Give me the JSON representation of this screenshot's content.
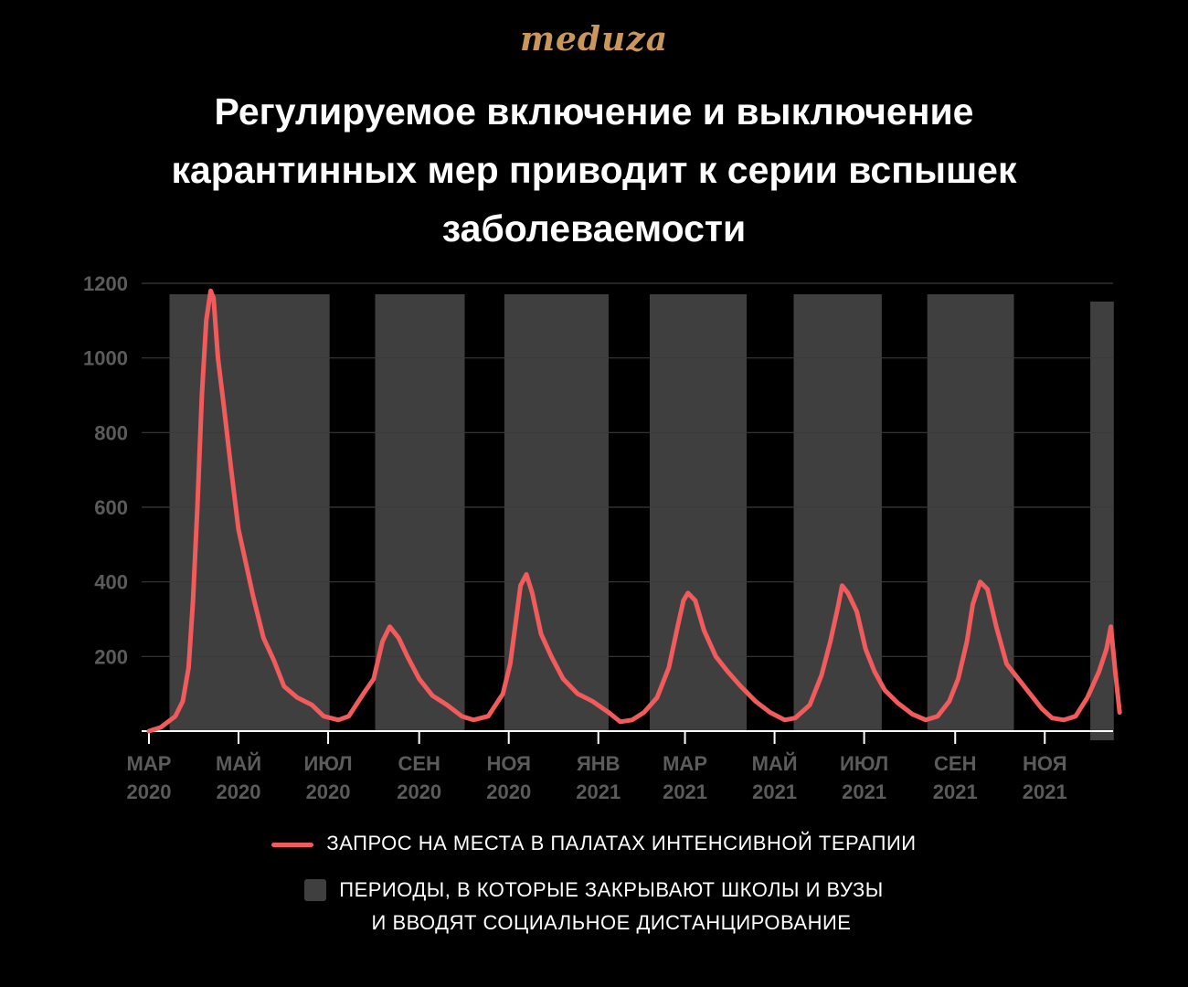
{
  "logo": "meduza",
  "colors": {
    "background": "#000000",
    "line": "#f15b5b",
    "band": "#3f3f3f",
    "logo": "#c9975c",
    "axis_text": "#5b5b5b",
    "grid": "#3a3a3a"
  },
  "chart_data": {
    "type": "line",
    "title": "Регулируемое включение и выключение карантинных мер приводит к серии вспышек заболеваемости",
    "xlabel": "",
    "ylabel": "",
    "ylim": [
      0,
      1200
    ],
    "xlim": [
      "2020-03-01",
      "2021-12-20"
    ],
    "yticks": [
      200,
      400,
      600,
      800,
      1000,
      1200
    ],
    "ytick_labels": [
      "200",
      "400",
      "600",
      "800",
      "1000",
      "1200"
    ],
    "xticks": [
      {
        "date": "2020-03-01",
        "line1": "МАР",
        "line2": "2020"
      },
      {
        "date": "2020-05-01",
        "line1": "МАЙ",
        "line2": "2020"
      },
      {
        "date": "2020-07-01",
        "line1": "ИЮЛ",
        "line2": "2020"
      },
      {
        "date": "2020-09-01",
        "line1": "СЕН",
        "line2": "2020"
      },
      {
        "date": "2020-11-01",
        "line1": "НОЯ",
        "line2": "2020"
      },
      {
        "date": "2021-01-01",
        "line1": "ЯНВ",
        "line2": "2021"
      },
      {
        "date": "2021-03-01",
        "line1": "МАР",
        "line2": "2021"
      },
      {
        "date": "2021-05-01",
        "line1": "МАЙ",
        "line2": "2021"
      },
      {
        "date": "2021-07-01",
        "line1": "ИЮЛ",
        "line2": "2021"
      },
      {
        "date": "2021-09-01",
        "line1": "СЕН",
        "line2": "2021"
      },
      {
        "date": "2021-11-01",
        "line1": "НОЯ",
        "line2": "2021"
      }
    ],
    "grid": true,
    "series": [
      {
        "name": "ЗАПРОС НА МЕСТА В ПАЛАТАХ ИНТЕНСИВНОЙ ТЕРАПИИ",
        "points": [
          [
            "2020-03-01",
            0
          ],
          [
            "2020-03-09",
            10
          ],
          [
            "2020-03-19",
            40
          ],
          [
            "2020-03-24",
            80
          ],
          [
            "2020-03-28",
            170
          ],
          [
            "2020-03-31",
            350
          ],
          [
            "2020-04-03",
            600
          ],
          [
            "2020-04-06",
            900
          ],
          [
            "2020-04-09",
            1100
          ],
          [
            "2020-04-12",
            1180
          ],
          [
            "2020-04-14",
            1160
          ],
          [
            "2020-04-17",
            1000
          ],
          [
            "2020-04-21",
            870
          ],
          [
            "2020-04-26",
            700
          ],
          [
            "2020-05-01",
            540
          ],
          [
            "2020-05-06",
            450
          ],
          [
            "2020-05-11",
            360
          ],
          [
            "2020-05-18",
            250
          ],
          [
            "2020-05-25",
            190
          ],
          [
            "2020-06-01",
            120
          ],
          [
            "2020-06-10",
            90
          ],
          [
            "2020-06-20",
            70
          ],
          [
            "2020-06-28",
            40
          ],
          [
            "2020-07-08",
            30
          ],
          [
            "2020-07-15",
            40
          ],
          [
            "2020-07-25",
            100
          ],
          [
            "2020-08-01",
            140
          ],
          [
            "2020-08-07",
            240
          ],
          [
            "2020-08-12",
            280
          ],
          [
            "2020-08-18",
            250
          ],
          [
            "2020-08-24",
            200
          ],
          [
            "2020-09-01",
            140
          ],
          [
            "2020-09-10",
            95
          ],
          [
            "2020-09-20",
            70
          ],
          [
            "2020-09-30",
            40
          ],
          [
            "2020-10-08",
            30
          ],
          [
            "2020-10-18",
            40
          ],
          [
            "2020-10-28",
            100
          ],
          [
            "2020-11-02",
            180
          ],
          [
            "2020-11-06",
            300
          ],
          [
            "2020-11-09",
            390
          ],
          [
            "2020-11-13",
            420
          ],
          [
            "2020-11-17",
            370
          ],
          [
            "2020-11-23",
            260
          ],
          [
            "2020-11-30",
            200
          ],
          [
            "2020-12-08",
            140
          ],
          [
            "2020-12-18",
            100
          ],
          [
            "2020-12-28",
            80
          ],
          [
            "2021-01-08",
            50
          ],
          [
            "2021-01-16",
            25
          ],
          [
            "2021-01-24",
            30
          ],
          [
            "2021-02-01",
            50
          ],
          [
            "2021-02-10",
            90
          ],
          [
            "2021-02-18",
            170
          ],
          [
            "2021-02-24",
            280
          ],
          [
            "2021-02-28",
            350
          ],
          [
            "2021-03-03",
            370
          ],
          [
            "2021-03-08",
            350
          ],
          [
            "2021-03-14",
            270
          ],
          [
            "2021-03-22",
            200
          ],
          [
            "2021-03-30",
            160
          ],
          [
            "2021-04-08",
            120
          ],
          [
            "2021-04-18",
            80
          ],
          [
            "2021-04-28",
            50
          ],
          [
            "2021-05-08",
            30
          ],
          [
            "2021-05-15",
            35
          ],
          [
            "2021-05-25",
            70
          ],
          [
            "2021-06-02",
            150
          ],
          [
            "2021-06-08",
            240
          ],
          [
            "2021-06-13",
            330
          ],
          [
            "2021-06-16",
            390
          ],
          [
            "2021-06-20",
            370
          ],
          [
            "2021-06-26",
            320
          ],
          [
            "2021-07-02",
            220
          ],
          [
            "2021-07-08",
            160
          ],
          [
            "2021-07-15",
            110
          ],
          [
            "2021-07-24",
            75
          ],
          [
            "2021-08-03",
            45
          ],
          [
            "2021-08-12",
            30
          ],
          [
            "2021-08-20",
            40
          ],
          [
            "2021-08-28",
            80
          ],
          [
            "2021-09-03",
            140
          ],
          [
            "2021-09-09",
            240
          ],
          [
            "2021-09-13",
            340
          ],
          [
            "2021-09-18",
            400
          ],
          [
            "2021-09-23",
            380
          ],
          [
            "2021-09-29",
            280
          ],
          [
            "2021-10-06",
            180
          ],
          [
            "2021-10-14",
            140
          ],
          [
            "2021-10-22",
            100
          ],
          [
            "2021-10-30",
            60
          ],
          [
            "2021-11-06",
            35
          ],
          [
            "2021-11-14",
            30
          ],
          [
            "2021-11-22",
            40
          ],
          [
            "2021-11-30",
            90
          ],
          [
            "2021-12-08",
            160
          ],
          [
            "2021-12-13",
            220
          ],
          [
            "2021-12-16",
            280
          ],
          [
            "2021-12-19",
            160
          ],
          [
            "2021-12-22",
            50
          ]
        ]
      }
    ],
    "bands": {
      "name": "ПЕРИОДЫ, В КОТОРЫЕ ЗАКРЫВАЮТ ШКОЛЫ И ВУЗЫ И ВВОДЯТ СОЦИАЛЬНОЕ ДИСТАНЦИРОВАНИЕ",
      "ranges": [
        [
          "2020-03-15",
          "2020-07-02"
        ],
        [
          "2020-08-02",
          "2020-10-02"
        ],
        [
          "2020-10-29",
          "2021-01-08"
        ],
        [
          "2021-02-05",
          "2021-04-12"
        ],
        [
          "2021-05-14",
          "2021-07-13"
        ],
        [
          "2021-08-13",
          "2021-10-11"
        ],
        [
          "2021-12-02",
          "2021-12-18"
        ]
      ]
    }
  },
  "legend": {
    "line_label": "ЗАПРОС НА МЕСТА В ПАЛАТАХ ИНТЕНСИВНОЙ ТЕРАПИИ",
    "band_label_line1": "ПЕРИОДЫ, В КОТОРЫЕ ЗАКРЫВАЮТ ШКОЛЫ И ВУЗЫ",
    "band_label_line2": "И ВВОДЯТ СОЦИАЛЬНОЕ ДИСТАНЦИРОВАНИЕ"
  }
}
